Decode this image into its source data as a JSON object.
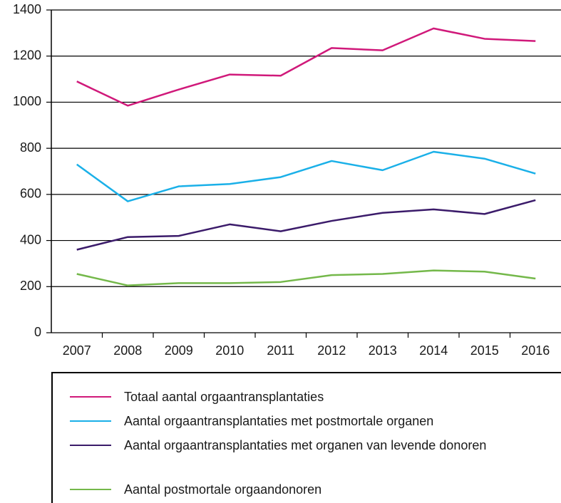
{
  "chart_data": {
    "type": "line",
    "categories": [
      "2007",
      "2008",
      "2009",
      "2010",
      "2011",
      "2012",
      "2013",
      "2014",
      "2015",
      "2016"
    ],
    "series": [
      {
        "name": "Totaal aantal orgaantransplantaties",
        "color": "#d0197a",
        "values": [
          1090,
          985,
          1055,
          1120,
          1115,
          1235,
          1225,
          1320,
          1275,
          1265
        ]
      },
      {
        "name": "Aantal orgaantransplantaties met postmortale organen",
        "color": "#1ab0e8",
        "values": [
          730,
          570,
          635,
          645,
          675,
          745,
          705,
          785,
          755,
          690
        ]
      },
      {
        "name": "Aantal orgaantransplantaties met organen van levende donoren",
        "color": "#3b1b6a",
        "values": [
          360,
          415,
          420,
          470,
          440,
          485,
          520,
          535,
          515,
          575
        ]
      },
      {
        "name": "Aantal postmortale orgaandonoren",
        "color": "#74b84a",
        "values": [
          255,
          205,
          215,
          215,
          220,
          250,
          255,
          270,
          265,
          235
        ]
      }
    ],
    "ylim": [
      0,
      1400
    ],
    "yticks": [
      0,
      200,
      400,
      600,
      800,
      1000,
      1200,
      1400
    ],
    "grid": true
  }
}
